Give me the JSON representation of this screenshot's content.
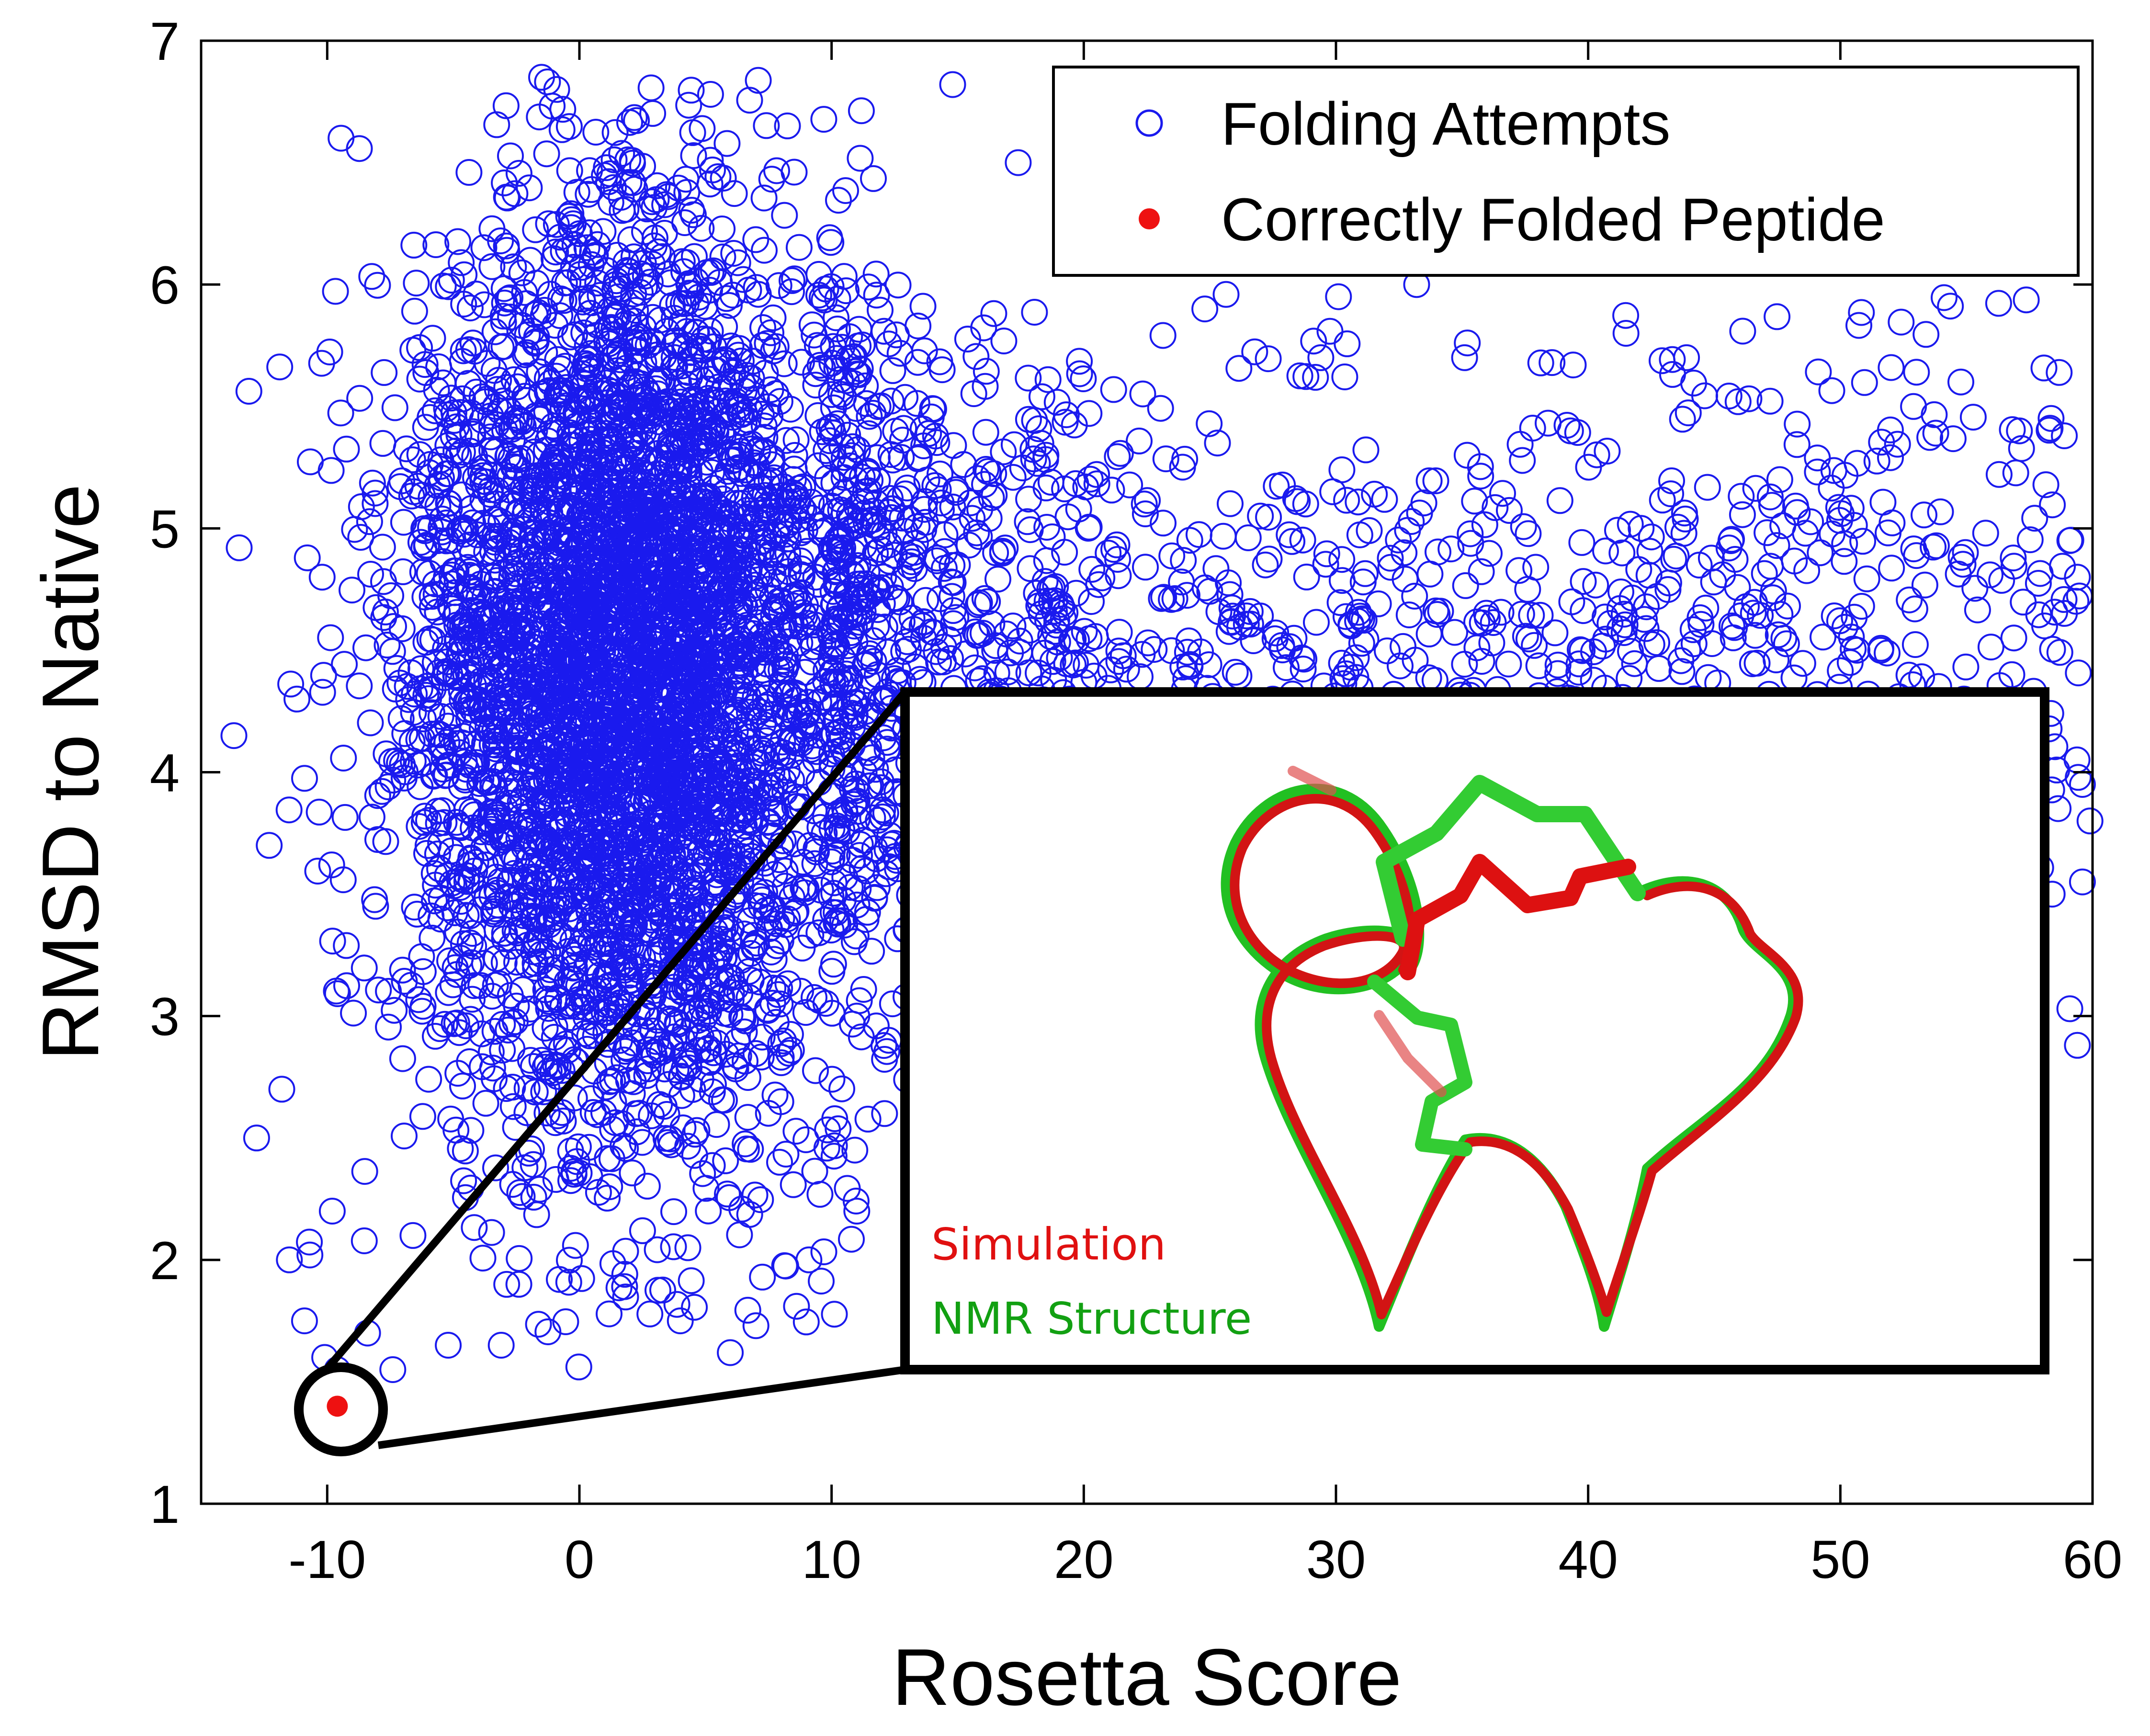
{
  "chart_data": {
    "type": "scatter",
    "title": "",
    "xlabel": "Rosetta Score",
    "ylabel": "RMSD to Native",
    "xlim": [
      -15,
      60
    ],
    "ylim": [
      1,
      7
    ],
    "xticks": [
      -10,
      0,
      10,
      20,
      30,
      40,
      50,
      60
    ],
    "yticks": [
      1,
      2,
      3,
      4,
      5,
      6,
      7
    ],
    "xtick_labels": [
      "-10",
      "0",
      "10",
      "20",
      "30",
      "40",
      "50",
      "60"
    ],
    "ytick_labels": [
      "1",
      "2",
      "3",
      "4",
      "5",
      "6",
      "7"
    ],
    "grid": false,
    "legend_position": "top-right",
    "series": [
      {
        "name": "Folding Attempts",
        "marker": "open-circle",
        "color": "#1a1aee",
        "approx_point_count": 6000,
        "distribution": {
          "main_cluster_center": [
            2,
            4.4
          ],
          "main_cluster_x_spread": 4.5,
          "main_cluster_y_spread": 0.95,
          "tail_x_range": [
            10,
            60
          ],
          "tail_y_range": [
            2.9,
            6.0
          ],
          "overall_y_range": [
            1.5,
            6.85
          ]
        },
        "points": [
          [
            -13.7,
            4.15
          ],
          [
            -12.8,
            2.5
          ],
          [
            -12.3,
            3.7
          ],
          [
            -11.8,
            2.7
          ],
          [
            -11.5,
            2.0
          ],
          [
            -11.2,
            4.3
          ],
          [
            -10.2,
            4.8
          ],
          [
            -10.9,
            1.75
          ],
          [
            -10.1,
            1.6
          ],
          [
            -9.6,
            1.55
          ],
          [
            -9.8,
            2.2
          ],
          [
            -8.4,
            1.7
          ],
          [
            -7.4,
            1.55
          ],
          [
            -6.6,
            2.1
          ],
          [
            -5.2,
            1.65
          ],
          [
            -3.1,
            1.65
          ],
          [
            -2.4,
            1.9
          ],
          [
            1.2,
            2.3
          ],
          [
            4.0,
            1.75
          ],
          [
            4.3,
            2.05
          ],
          [
            7.0,
            1.73
          ],
          [
            9.1,
            2.0
          ],
          [
            11.0,
            2.2
          ],
          [
            -1.5,
            6.85
          ],
          [
            -0.9,
            6.8
          ],
          [
            5.2,
            6.78
          ],
          [
            14.8,
            6.82
          ],
          [
            17.4,
            6.5
          ],
          [
            24.8,
            5.9
          ],
          [
            30.1,
            5.95
          ],
          [
            33.2,
            6.0
          ],
          [
            29.4,
            5.7
          ],
          [
            35.1,
            5.7
          ],
          [
            41.5,
            5.8
          ],
          [
            43.9,
            5.7
          ],
          [
            52.9,
            5.5
          ],
          [
            57.1,
            5.4
          ],
          [
            59.1,
            4.95
          ],
          [
            59.4,
            4.8
          ],
          [
            58.1,
            4.6
          ],
          [
            59.6,
            3.95
          ],
          [
            59.9,
            3.8
          ],
          [
            59.6,
            3.55
          ],
          [
            59.1,
            3.03
          ],
          [
            59.4,
            2.88
          ],
          [
            58.4,
            3.5
          ],
          [
            57.4,
            3.7
          ],
          [
            56.8,
            4.4
          ],
          [
            54.9,
            4.3
          ],
          [
            51.6,
            4.5
          ],
          [
            49.2,
            4.9
          ],
          [
            47.6,
            5.2
          ],
          [
            45.7,
            4.6
          ],
          [
            42.1,
            5.0
          ],
          [
            39.3,
            5.4
          ],
          [
            37.6,
            4.75
          ],
          [
            35.2,
            5.3
          ],
          [
            32.7,
            4.9
          ],
          [
            30.6,
            4.6
          ],
          [
            28.8,
            5.1
          ],
          [
            27.2,
            4.85
          ],
          [
            25.3,
            5.35
          ],
          [
            22.4,
            5.1
          ],
          [
            20.3,
            4.7
          ],
          [
            18.5,
            5.3
          ],
          [
            16.7,
            4.3
          ],
          [
            14.6,
            3.7
          ],
          [
            13.4,
            3.2
          ],
          [
            12.1,
            2.6
          ],
          [
            11.0,
            3.0
          ]
        ]
      },
      {
        "name": "Correctly Folded Peptide",
        "marker": "filled-dot",
        "color": "#ee1111",
        "points": [
          [
            -9.6,
            1.4
          ]
        ]
      }
    ],
    "inset": {
      "labels": [
        "Simulation",
        "NMR Structure"
      ],
      "label_colors": [
        "#e01010",
        "#12a012"
      ]
    }
  }
}
